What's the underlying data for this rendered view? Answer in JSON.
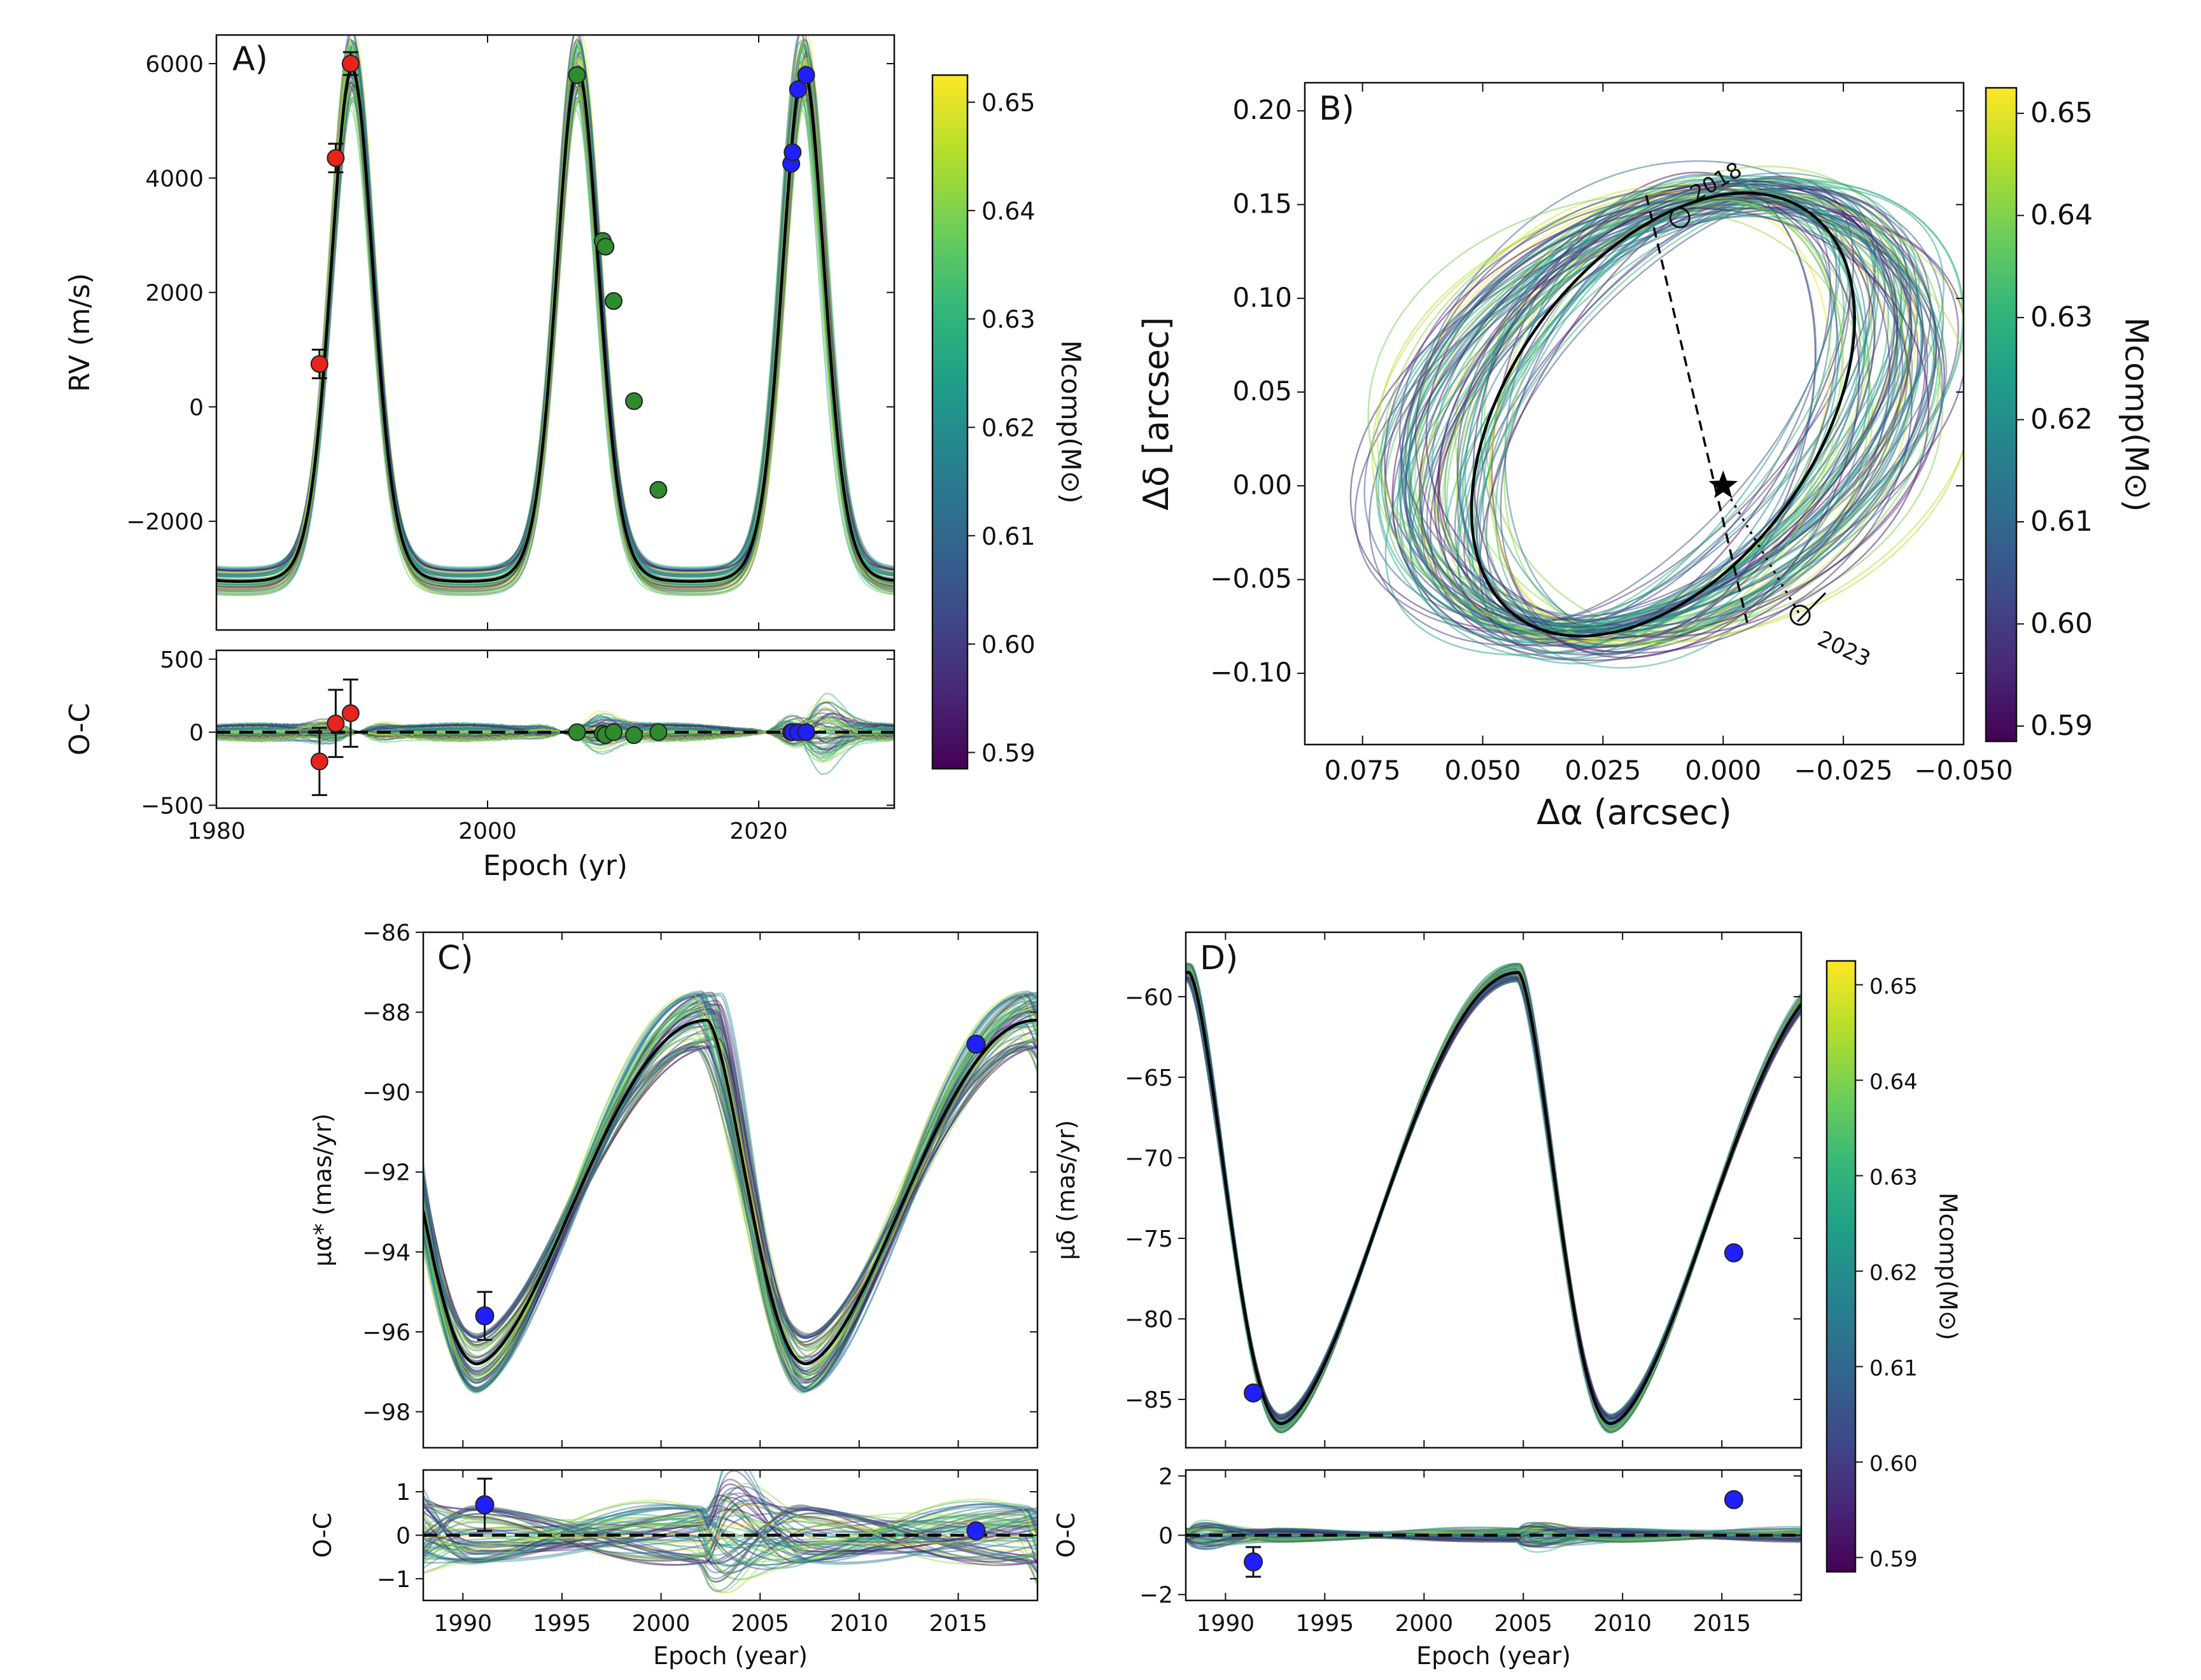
{
  "figure": {
    "colormap_name": "viridis",
    "colors": {
      "red_points": "#e8231c",
      "green_points": "#2e8b2e",
      "blue_points": "#1f1fff",
      "best_fit": "#000000",
      "viridis_stops": [
        "#440154",
        "#482878",
        "#3e4a89",
        "#31688e",
        "#26828e",
        "#1f9e89",
        "#35b779",
        "#6ece58",
        "#b5de2b",
        "#fde725"
      ]
    }
  },
  "chart_data": [
    {
      "id": "A",
      "type": "line",
      "panel_label": "A)",
      "xlabel": "Epoch (yr)",
      "ylabel": "RV (m/s)",
      "resid_ylabel": "O-C",
      "xlim": [
        1980,
        2030
      ],
      "ylim": [
        -3900,
        6500
      ],
      "resid_ylim": [
        -520,
        560
      ],
      "xticks": [
        1980,
        2000,
        2020
      ],
      "xtick_labels": [
        "1980",
        "2000",
        "2020"
      ],
      "yticks": [
        6000,
        4000,
        2000,
        0,
        -2000
      ],
      "ytick_labels": [
        "6000",
        "4000",
        "2000",
        "0",
        "−2000"
      ],
      "resid_yticks": [
        500,
        0,
        -500
      ],
      "resid_ytick_labels": [
        "500",
        "0",
        "−500"
      ],
      "model": {
        "kind": "rv",
        "period": 16.65,
        "peak_epoch": 1990.0,
        "max": 5900,
        "min": -3050,
        "sharpness": 3.0,
        "spread": 350
      },
      "points": [
        {
          "x": 1987.6,
          "y": 750,
          "err": 250,
          "resid": -200,
          "color": "red"
        },
        {
          "x": 1988.8,
          "y": 4350,
          "err": 250,
          "resid": 60,
          "color": "red"
        },
        {
          "x": 1989.9,
          "y": 6000,
          "err": 200,
          "resid": 130,
          "color": "red"
        },
        {
          "x": 2006.6,
          "y": 5800,
          "err": 0,
          "resid": 0,
          "color": "green"
        },
        {
          "x": 2008.5,
          "y": 2900,
          "err": 0,
          "resid": -10,
          "color": "green"
        },
        {
          "x": 2008.7,
          "y": 2800,
          "err": 0,
          "resid": -20,
          "color": "green"
        },
        {
          "x": 2009.3,
          "y": 1850,
          "err": 0,
          "resid": 0,
          "color": "green"
        },
        {
          "x": 2010.8,
          "y": 100,
          "err": 0,
          "resid": -20,
          "color": "green"
        },
        {
          "x": 2012.6,
          "y": -1450,
          "err": 0,
          "resid": 0,
          "color": "green"
        },
        {
          "x": 2022.4,
          "y": 4250,
          "err": 0,
          "resid": 0,
          "color": "blue"
        },
        {
          "x": 2022.5,
          "y": 4450,
          "err": 0,
          "resid": 0,
          "color": "blue"
        },
        {
          "x": 2022.9,
          "y": 5550,
          "err": 0,
          "resid": 0,
          "color": "blue"
        },
        {
          "x": 2023.5,
          "y": 5800,
          "err": 0,
          "resid": 0,
          "color": "blue"
        }
      ]
    },
    {
      "id": "B",
      "type": "line",
      "panel_label": "B)",
      "xlabel": "Δα (arcsec)",
      "ylabel": "Δδ [arcsec]",
      "xlim": [
        0.087,
        -0.05
      ],
      "ylim": [
        -0.138,
        0.215
      ],
      "xticks": [
        0.075,
        0.05,
        0.025,
        0.0,
        -0.025,
        -0.05
      ],
      "xtick_labels": [
        "0.075",
        "0.050",
        "0.025",
        "0.000",
        "−0.025",
        "−0.050"
      ],
      "yticks": [
        0.2,
        0.15,
        0.1,
        0.05,
        0.0,
        -0.05,
        -0.1
      ],
      "ytick_labels": [
        "0.20",
        "0.15",
        "0.10",
        "0.05",
        "0.00",
        "−0.05",
        "−0.10"
      ],
      "orbit": {
        "center": [
          0.0125,
          0.038
        ],
        "half_major": [
          -0.019,
          0.118
        ],
        "half_minor": [
          0.035,
          0.006
        ]
      },
      "star": [
        0.0,
        0.0
      ],
      "annotations": [
        {
          "label": "2018",
          "x": 0.009,
          "y": 0.143
        },
        {
          "label": "2023",
          "x": -0.016,
          "y": -0.069
        }
      ],
      "node_line": [
        [
          0.016,
          0.155
        ],
        [
          -0.005,
          -0.073
        ]
      ],
      "dotted_line": [
        [
          0.0,
          0.0
        ],
        [
          -0.016,
          -0.069
        ]
      ]
    },
    {
      "id": "C",
      "type": "line",
      "panel_label": "C)",
      "xlabel": "Epoch (year)",
      "ylabel": "μα* (mas/yr)",
      "resid_ylabel": "O-C",
      "xlim": [
        1988,
        2019
      ],
      "ylim": [
        -98.9,
        -86.0
      ],
      "resid_ylim": [
        -1.5,
        1.5
      ],
      "xticks": [
        1990,
        1995,
        2000,
        2005,
        2010,
        2015
      ],
      "xtick_labels": [
        "1990",
        "1995",
        "2000",
        "2005",
        "2010",
        "2015"
      ],
      "yticks": [
        -86,
        -88,
        -90,
        -92,
        -94,
        -96,
        -98
      ],
      "ytick_labels": [
        "−86",
        "−88",
        "−90",
        "−92",
        "−94",
        "−96",
        "−98"
      ],
      "resid_yticks": [
        1,
        0,
        -1
      ],
      "resid_ytick_labels": [
        "1",
        "0",
        "−1"
      ],
      "model": {
        "kind": "pm_a",
        "period": 16.6,
        "min_epoch": 1990.7,
        "min": -96.8,
        "max": -88.2,
        "rise": 0.7
      },
      "points": [
        {
          "x": 1991.1,
          "y": -95.6,
          "err": 0.6,
          "resid": 0.7,
          "resid_err": 0.6,
          "color": "blue"
        },
        {
          "x": 2015.9,
          "y": -88.8,
          "err": 0,
          "resid": 0.1,
          "resid_err": 0,
          "color": "blue"
        }
      ]
    },
    {
      "id": "D",
      "type": "line",
      "panel_label": "D)",
      "xlabel": "Epoch (year)",
      "ylabel": "μδ (mas/yr)",
      "resid_ylabel": "O-C",
      "xlim": [
        1988,
        2019
      ],
      "ylim": [
        -88.0,
        -56.0
      ],
      "resid_ylim": [
        -2.2,
        2.2
      ],
      "xticks": [
        1990,
        1995,
        2000,
        2005,
        2010,
        2015
      ],
      "xtick_labels": [
        "1990",
        "1995",
        "2000",
        "2005",
        "2010",
        "2015"
      ],
      "yticks": [
        -60,
        -65,
        -70,
        -75,
        -80,
        -85
      ],
      "ytick_labels": [
        "−60",
        "−65",
        "−70",
        "−75",
        "−80",
        "−85"
      ],
      "resid_yticks": [
        2,
        0,
        -2
      ],
      "resid_ytick_labels": [
        "2",
        "0",
        "−2"
      ],
      "model": {
        "kind": "pm_d",
        "period": 16.6,
        "min_epoch": 1992.8,
        "min": -86.5,
        "max": -58.5,
        "rise": 0.72
      },
      "points": [
        {
          "x": 1991.4,
          "y": -84.6,
          "err": 0,
          "resid": -0.9,
          "resid_err": 0.5,
          "color": "blue"
        },
        {
          "x": 2015.6,
          "y": -75.9,
          "err": 0,
          "resid": 1.2,
          "resid_err": 0,
          "color": "blue"
        }
      ]
    }
  ],
  "colorbars": [
    {
      "id": "cbA",
      "label": "Mcomp(M⊙)",
      "ticks": [
        0.65,
        0.64,
        0.63,
        0.62,
        0.61,
        0.6,
        0.59
      ],
      "tick_labels": [
        "0.65",
        "0.64",
        "0.63",
        "0.62",
        "0.61",
        "0.60",
        "0.59"
      ],
      "range": [
        0.5885,
        0.6525
      ]
    },
    {
      "id": "cbB",
      "label": "Mcomp(M⊙)",
      "ticks": [
        0.65,
        0.64,
        0.63,
        0.62,
        0.61,
        0.6,
        0.59
      ],
      "tick_labels": [
        "0.65",
        "0.64",
        "0.63",
        "0.62",
        "0.61",
        "0.60",
        "0.59"
      ],
      "range": [
        0.5885,
        0.6525
      ]
    },
    {
      "id": "cbD",
      "label": "Mcomp(M⊙)",
      "ticks": [
        0.65,
        0.64,
        0.63,
        0.62,
        0.61,
        0.6,
        0.59
      ],
      "tick_labels": [
        "0.65",
        "0.64",
        "0.63",
        "0.62",
        "0.61",
        "0.60",
        "0.59"
      ],
      "range": [
        0.5885,
        0.6525
      ]
    }
  ]
}
